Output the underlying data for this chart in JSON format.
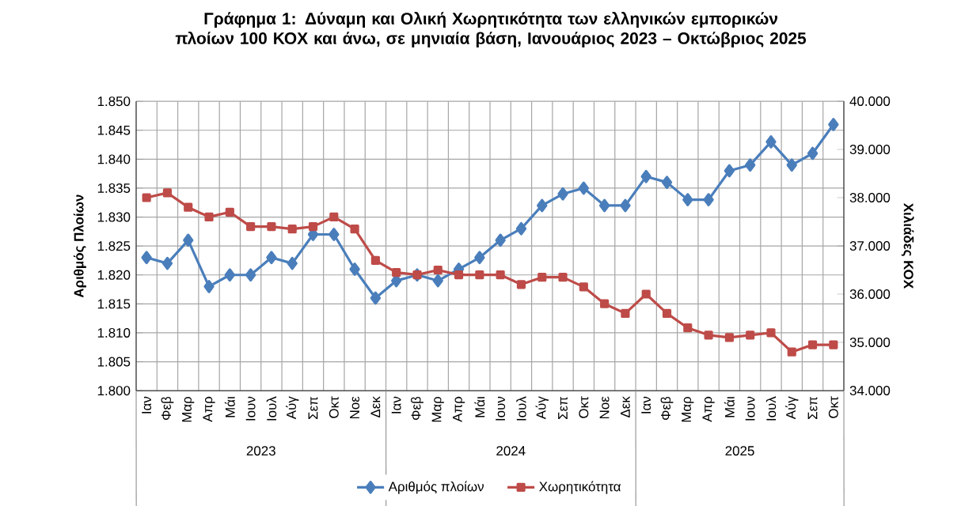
{
  "chart_data": {
    "type": "line",
    "title": "Γράφημα 1: Δύναμη και Ολική Χωρητικότητα των ελληνικών εμπορικών πλοίων 100 ΚΟΧ και άνω, σε μηνιαία βάση, Ιανουάριος 2023 – Οκτώβριος 2025",
    "categories": [
      "Ιαν",
      "Φεβ",
      "Μαρ",
      "Απρ",
      "Μάι",
      "Ιουν",
      "Ιουλ",
      "Αύγ",
      "Σεπ",
      "Οκτ",
      "Νοε",
      "Δεκ",
      "Ιαν",
      "Φεβ",
      "Μαρ",
      "Απρ",
      "Μάι",
      "Ιουν",
      "Ιουλ",
      "Αύγ",
      "Σεπ",
      "Οκτ",
      "Νοε",
      "Δεκ",
      "Ιαν",
      "Φεβ",
      "Μαρ",
      "Απρ",
      "Μάι",
      "Ιουν",
      "Ιουλ",
      "Αύγ",
      "Σεπ",
      "Οκτ"
    ],
    "series": [
      {
        "name": "Αριθμός πλοίων",
        "color": "#4a7ebb",
        "marker": "diamond",
        "values": [
          1823,
          1822,
          1826,
          1818,
          1820,
          1820,
          1823,
          1822,
          1827,
          1827,
          1821,
          1816,
          1819,
          1820,
          1819,
          1821,
          1823,
          1826,
          1828,
          1832,
          1834,
          1835,
          1832,
          1832,
          1837,
          1836,
          1833,
          1833,
          1838,
          1839,
          1843,
          1839,
          1841,
          1846
        ]
      },
      {
        "name": "Χωρητικότητα",
        "color": "#be4b48",
        "marker": "square",
        "axis": "y2",
        "values": [
          38000,
          38100,
          37800,
          37600,
          37700,
          37400,
          37400,
          37350,
          37400,
          37600,
          37350,
          36700,
          36450,
          36400,
          36500,
          36400,
          36400,
          36400,
          36200,
          36350,
          36350,
          36150,
          35800,
          35600,
          36000,
          35600,
          35300,
          35150,
          35100,
          35150,
          35200,
          34800,
          34950,
          34950
        ]
      }
    ],
    "ylabel": "Αριθμός Πλοίων",
    "y2label": "Χιλιάδες ΚΟΧ",
    "ylim": [
      1800,
      1850
    ],
    "yticks": [
      {
        "value": 1800,
        "label": "1.800"
      },
      {
        "value": 1805,
        "label": "1.805"
      },
      {
        "value": 1810,
        "label": "1.810"
      },
      {
        "value": 1815,
        "label": "1.815"
      },
      {
        "value": 1820,
        "label": "1.820"
      },
      {
        "value": 1825,
        "label": "1.825"
      },
      {
        "value": 1830,
        "label": "1.830"
      },
      {
        "value": 1835,
        "label": "1.835"
      },
      {
        "value": 1840,
        "label": "1.840"
      },
      {
        "value": 1845,
        "label": "1.845"
      },
      {
        "value": 1850,
        "label": "1.850"
      }
    ],
    "y2lim": [
      34000,
      40000
    ],
    "y2ticks": [
      {
        "value": 34000,
        "label": "34.000"
      },
      {
        "value": 35000,
        "label": "35.000"
      },
      {
        "value": 36000,
        "label": "36.000"
      },
      {
        "value": 37000,
        "label": "37.000"
      },
      {
        "value": 38000,
        "label": "38.000"
      },
      {
        "value": 39000,
        "label": "39.000"
      },
      {
        "value": 40000,
        "label": "40.000"
      }
    ],
    "annotations": [
      "2023",
      "2024",
      "2025"
    ],
    "grid": true,
    "legend": "bottom",
    "line_style": "solid"
  }
}
